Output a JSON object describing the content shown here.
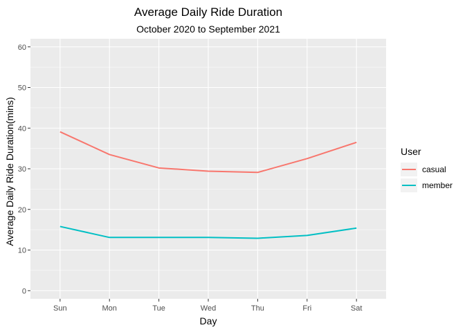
{
  "chart_data": {
    "type": "line",
    "title": "Average Daily Ride Duration",
    "subtitle": "October 2020 to September 2021",
    "xlabel": "Day",
    "ylabel": "Average Daily Ride Duration(mins)",
    "categories": [
      "Sun",
      "Mon",
      "Tue",
      "Wed",
      "Thu",
      "Fri",
      "Sat"
    ],
    "ylim": [
      -2,
      62
    ],
    "yticks": [
      0,
      10,
      20,
      30,
      40,
      50,
      60
    ],
    "grid": true,
    "legend": {
      "title": "User",
      "position": "right"
    },
    "series": [
      {
        "name": "casual",
        "color": "#F8766D",
        "values": [
          39.1,
          33.5,
          30.2,
          29.4,
          29.1,
          32.5,
          36.5
        ]
      },
      {
        "name": "member",
        "color": "#00BFC4",
        "values": [
          15.8,
          13.1,
          13.1,
          13.1,
          12.9,
          13.6,
          15.4
        ]
      }
    ],
    "panel_background": "#EBEBEB",
    "gridline_color": "#FFFFFF"
  }
}
